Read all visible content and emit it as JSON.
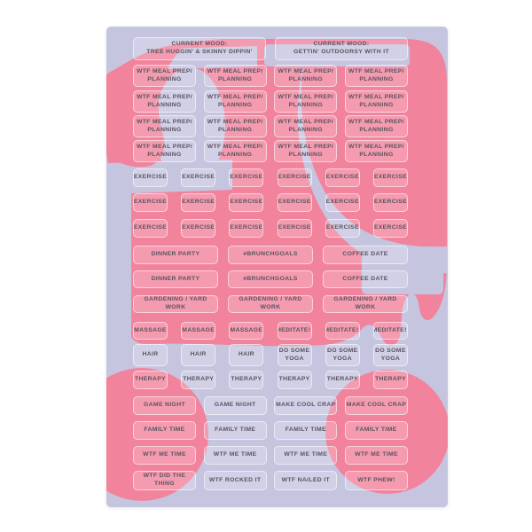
{
  "colors": {
    "page_bg": "#ffffff",
    "sheet_lavender": "#c6c5e0",
    "blob_pink": "#f2839c",
    "sticker_text": "#5a5360"
  },
  "sheet": {
    "rows": [
      {
        "cols": 2,
        "stickers": [
          {
            "label": "CURRENT MOOD:\nTREE HUGGIN' & SKINNY DIPPIN'"
          },
          {
            "label": "CURRENT MOOD:\nGETTIN' OUTDOORSY WITH IT"
          }
        ]
      },
      {
        "cols": 4,
        "stickers": [
          {
            "label": "WTF MEAL PREP/\nPLANNING"
          },
          {
            "label": "WTF MEAL PREP/\nPLANNING"
          },
          {
            "label": "WTF MEAL PREP/\nPLANNING"
          },
          {
            "label": "WTF MEAL PREP/\nPLANNING"
          }
        ]
      },
      {
        "cols": 4,
        "stickers": [
          {
            "label": "WTF MEAL PREP/\nPLANNING"
          },
          {
            "label": "WTF MEAL PREP/\nPLANNING"
          },
          {
            "label": "WTF MEAL PREP/\nPLANNING"
          },
          {
            "label": "WTF MEAL PREP/\nPLANNING"
          }
        ]
      },
      {
        "cols": 4,
        "stickers": [
          {
            "label": "WTF MEAL PREP/\nPLANNING"
          },
          {
            "label": "WTF MEAL PREP/\nPLANNING"
          },
          {
            "label": "WTF MEAL PREP/\nPLANNING"
          },
          {
            "label": "WTF MEAL PREP/\nPLANNING"
          }
        ]
      },
      {
        "cols": 4,
        "stickers": [
          {
            "label": "WTF MEAL PREP/\nPLANNING"
          },
          {
            "label": "WTF MEAL PREP/\nPLANNING"
          },
          {
            "label": "WTF MEAL PREP/\nPLANNING"
          },
          {
            "label": "WTF MEAL PREP/\nPLANNING"
          }
        ]
      },
      {
        "cols": 6,
        "stickers": [
          {
            "label": "EXERCISE"
          },
          {
            "label": "EXERCISE"
          },
          {
            "label": "EXERCISE"
          },
          {
            "label": "EXERCISE"
          },
          {
            "label": "EXERCISE"
          },
          {
            "label": "EXERCISE"
          }
        ]
      },
      {
        "cols": 6,
        "stickers": [
          {
            "label": "EXERCISE"
          },
          {
            "label": "EXERCISE"
          },
          {
            "label": "EXERCISE"
          },
          {
            "label": "EXERCISE"
          },
          {
            "label": "EXERCISE"
          },
          {
            "label": "EXERCISE"
          }
        ]
      },
      {
        "cols": 6,
        "stickers": [
          {
            "label": "EXERCISE"
          },
          {
            "label": "EXERCISE"
          },
          {
            "label": "EXERCISE"
          },
          {
            "label": "EXERCISE"
          },
          {
            "label": "EXERCISE"
          },
          {
            "label": "EXERCISE"
          }
        ]
      },
      {
        "cols": 3,
        "stickers": [
          {
            "label": "DINNER PARTY"
          },
          {
            "label": "#BRUNCHGOALS"
          },
          {
            "label": "COFFEE DATE"
          }
        ]
      },
      {
        "cols": 3,
        "stickers": [
          {
            "label": "DINNER PARTY"
          },
          {
            "label": "#BRUNCHGOALS"
          },
          {
            "label": "COFFEE DATE"
          }
        ]
      },
      {
        "cols": 3,
        "stickers": [
          {
            "label": "GARDENING / YARD WORK"
          },
          {
            "label": "GARDENING / YARD WORK"
          },
          {
            "label": "GARDENING / YARD WORK"
          }
        ]
      },
      {
        "cols": 6,
        "stickers": [
          {
            "label": "MASSAGE"
          },
          {
            "label": "MASSAGE"
          },
          {
            "label": "MASSAGE"
          },
          {
            "label": "MEDITATE!!"
          },
          {
            "label": "MEDITATE!!"
          },
          {
            "label": "MEDITATE!!"
          }
        ]
      },
      {
        "cols": 6,
        "stickers": [
          {
            "label": "HAIR"
          },
          {
            "label": "HAIR"
          },
          {
            "label": "HAIR"
          },
          {
            "label": "DO SOME\nYOGA"
          },
          {
            "label": "DO SOME\nYOGA"
          },
          {
            "label": "DO SOME\nYOGA"
          }
        ]
      },
      {
        "cols": 6,
        "stickers": [
          {
            "label": "THERAPY"
          },
          {
            "label": "THERAPY"
          },
          {
            "label": "THERAPY"
          },
          {
            "label": "THERAPY"
          },
          {
            "label": "THERAPY"
          },
          {
            "label": "THERAPY"
          }
        ]
      },
      {
        "cols": 4,
        "stickers": [
          {
            "label": "GAME NIGHT"
          },
          {
            "label": "GAME NIGHT"
          },
          {
            "label": "MAKE COOL CRAP"
          },
          {
            "label": "MAKE COOL CRAP"
          }
        ]
      },
      {
        "cols": 4,
        "stickers": [
          {
            "label": "FAMILY TIME"
          },
          {
            "label": "FAMILY TIME"
          },
          {
            "label": "FAMILY TIME"
          },
          {
            "label": "FAMILY TIME"
          }
        ]
      },
      {
        "cols": 4,
        "stickers": [
          {
            "label": "WTF ME TIME"
          },
          {
            "label": "WTF ME TIME"
          },
          {
            "label": "WTF ME TIME"
          },
          {
            "label": "WTF ME TIME"
          }
        ]
      },
      {
        "cols": 4,
        "stickers": [
          {
            "label": "WTF DID THE THING"
          },
          {
            "label": "WTF ROCKED IT"
          },
          {
            "label": "WTF NAILED IT"
          },
          {
            "label": "WTF PHEW!"
          }
        ]
      }
    ]
  }
}
